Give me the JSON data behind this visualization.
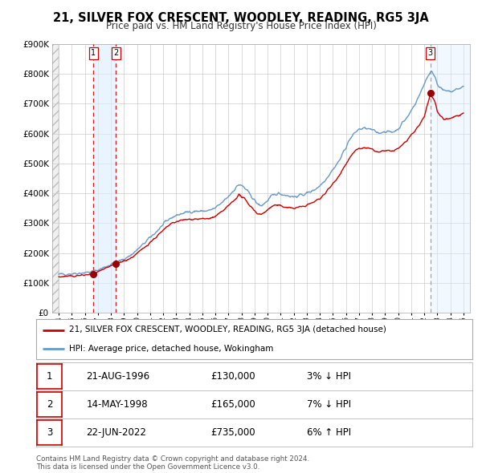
{
  "title": "21, SILVER FOX CRESCENT, WOODLEY, READING, RG5 3JA",
  "subtitle": "Price paid vs. HM Land Registry's House Price Index (HPI)",
  "legend_label_red": "21, SILVER FOX CRESCENT, WOODLEY, READING, RG5 3JA (detached house)",
  "legend_label_blue": "HPI: Average price, detached house, Wokingham",
  "footer_line1": "Contains HM Land Registry data © Crown copyright and database right 2024.",
  "footer_line2": "This data is licensed under the Open Government Licence v3.0.",
  "table_rows": [
    {
      "num": "1",
      "date_str": "21-AUG-1996",
      "price_str": "£130,000",
      "hpi_str": "3% ↓ HPI"
    },
    {
      "num": "2",
      "date_str": "14-MAY-1998",
      "price_str": "£165,000",
      "hpi_str": "7% ↓ HPI"
    },
    {
      "num": "3",
      "date_str": "22-JUN-2022",
      "price_str": "£735,000",
      "hpi_str": "6% ↑ HPI"
    }
  ],
  "sale_year_dec": [
    1996.644,
    1998.369,
    2022.472
  ],
  "sale_prices": [
    130000,
    165000,
    735000
  ],
  "ylim": [
    0,
    900000
  ],
  "yticks": [
    0,
    100000,
    200000,
    300000,
    400000,
    500000,
    600000,
    700000,
    800000,
    900000
  ],
  "ytick_labels": [
    "£0",
    "£100K",
    "£200K",
    "£300K",
    "£400K",
    "£500K",
    "£600K",
    "£700K",
    "£800K",
    "£900K"
  ],
  "xmin": 1993.5,
  "xmax": 2025.5,
  "color_red": "#cc0000",
  "color_blue": "#6699cc",
  "color_shading": "#ddeeff",
  "color_hatch_bg": "#e8e8e8",
  "background_color": "#ffffff",
  "grid_color": "#cccccc",
  "hpi_anchors_t": [
    1994.0,
    1995.0,
    1996.0,
    1996.5,
    1997.0,
    1997.5,
    1998.0,
    1998.5,
    1999.0,
    1999.5,
    2000.0,
    2000.5,
    2001.0,
    2001.5,
    2002.0,
    2002.5,
    2003.0,
    2003.5,
    2004.0,
    2004.5,
    2005.0,
    2005.5,
    2006.0,
    2006.5,
    2007.0,
    2007.5,
    2007.8,
    2008.2,
    2008.8,
    2009.2,
    2009.5,
    2010.0,
    2010.3,
    2010.8,
    2011.0,
    2011.5,
    2012.0,
    2012.5,
    2013.0,
    2013.5,
    2014.0,
    2014.5,
    2015.0,
    2015.5,
    2016.0,
    2016.3,
    2016.8,
    2017.0,
    2017.5,
    2018.0,
    2018.5,
    2019.0,
    2019.5,
    2020.0,
    2020.3,
    2020.8,
    2021.0,
    2021.3,
    2021.7,
    2022.0,
    2022.3,
    2022.5,
    2022.8,
    2023.0,
    2023.3,
    2023.6,
    2024.0,
    2024.5,
    2025.0
  ],
  "hpi_anchors_v": [
    128000,
    131000,
    134000,
    137000,
    143000,
    152000,
    162000,
    170000,
    180000,
    192000,
    210000,
    230000,
    252000,
    272000,
    295000,
    315000,
    326000,
    333000,
    338000,
    340000,
    340000,
    342000,
    350000,
    368000,
    390000,
    415000,
    430000,
    420000,
    388000,
    365000,
    358000,
    375000,
    390000,
    400000,
    398000,
    393000,
    388000,
    393000,
    400000,
    410000,
    425000,
    450000,
    480000,
    510000,
    555000,
    582000,
    608000,
    615000,
    618000,
    612000,
    602000,
    608000,
    604000,
    615000,
    635000,
    660000,
    678000,
    700000,
    735000,
    768000,
    795000,
    808000,
    795000,
    768000,
    750000,
    742000,
    740000,
    748000,
    758000
  ],
  "red_anchors_t": [
    1994.0,
    1995.0,
    1996.0,
    1996.644,
    1997.0,
    1997.5,
    1998.0,
    1998.369,
    1999.0,
    1999.5,
    2000.0,
    2000.5,
    2001.0,
    2001.5,
    2002.0,
    2002.5,
    2003.0,
    2003.5,
    2004.0,
    2004.5,
    2005.0,
    2005.5,
    2006.0,
    2006.5,
    2007.0,
    2007.5,
    2007.8,
    2008.2,
    2008.8,
    2009.2,
    2009.5,
    2010.0,
    2010.5,
    2011.0,
    2011.5,
    2012.0,
    2012.5,
    2013.0,
    2013.5,
    2014.0,
    2014.5,
    2015.0,
    2015.5,
    2016.0,
    2016.3,
    2016.8,
    2017.0,
    2017.5,
    2018.0,
    2018.5,
    2019.0,
    2019.5,
    2020.0,
    2020.5,
    2021.0,
    2021.5,
    2022.0,
    2022.472,
    2022.7,
    2022.9,
    2023.0,
    2023.5,
    2024.0,
    2024.5,
    2025.0
  ],
  "red_anchors_v": [
    120000,
    122000,
    126000,
    130000,
    136000,
    145000,
    157000,
    165000,
    173000,
    182000,
    198000,
    216000,
    236000,
    255000,
    275000,
    295000,
    305000,
    310000,
    313000,
    314000,
    314000,
    315000,
    322000,
    338000,
    358000,
    380000,
    395000,
    382000,
    352000,
    333000,
    328000,
    345000,
    360000,
    358000,
    353000,
    350000,
    354000,
    360000,
    370000,
    382000,
    405000,
    432000,
    462000,
    498000,
    520000,
    545000,
    550000,
    552000,
    547000,
    537000,
    543000,
    540000,
    550000,
    570000,
    592000,
    622000,
    655000,
    735000,
    718000,
    695000,
    672000,
    648000,
    652000,
    660000,
    668000
  ]
}
